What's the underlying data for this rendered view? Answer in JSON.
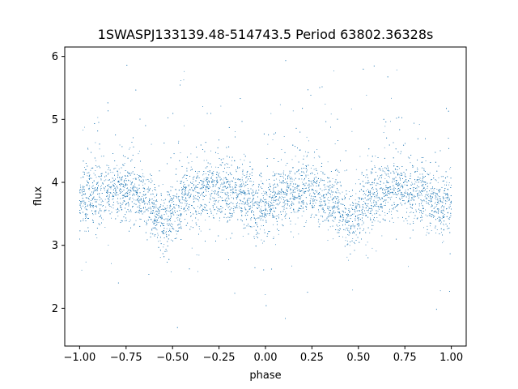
{
  "chart_data": {
    "type": "scatter",
    "title": "1SWASPJ133139.48-514743.5 Period 63802.36328s",
    "xlabel": "phase",
    "ylabel": "flux",
    "xlim": [
      -1.08,
      1.08
    ],
    "ylim": [
      1.4,
      6.15
    ],
    "xticks": [
      -1.0,
      -0.75,
      -0.5,
      -0.25,
      0.0,
      0.25,
      0.5,
      0.75,
      1.0
    ],
    "xtick_labels": [
      "−1.00",
      "−0.75",
      "−0.50",
      "−0.25",
      "0.00",
      "0.25",
      "0.50",
      "0.75",
      "1.00"
    ],
    "yticks": [
      2,
      3,
      4,
      5,
      6
    ],
    "ytick_labels": [
      "2",
      "3",
      "4",
      "5",
      "6"
    ],
    "grid": false,
    "marker_color": "#1f77b4",
    "series": [
      {
        "name": "",
        "x_range": [
          -1.0,
          1.0
        ],
        "mean_profile": [
          {
            "x": -1.0,
            "y": 3.7
          },
          {
            "x": -0.9,
            "y": 3.8
          },
          {
            "x": -0.8,
            "y": 3.88
          },
          {
            "x": -0.7,
            "y": 3.85
          },
          {
            "x": -0.62,
            "y": 3.65
          },
          {
            "x": -0.55,
            "y": 3.32
          },
          {
            "x": -0.48,
            "y": 3.6
          },
          {
            "x": -0.4,
            "y": 3.8
          },
          {
            "x": -0.3,
            "y": 3.88
          },
          {
            "x": -0.2,
            "y": 3.85
          },
          {
            "x": -0.1,
            "y": 3.72
          },
          {
            "x": -0.05,
            "y": 3.55
          },
          {
            "x": 0.0,
            "y": 3.65
          },
          {
            "x": 0.1,
            "y": 3.8
          },
          {
            "x": 0.2,
            "y": 3.88
          },
          {
            "x": 0.3,
            "y": 3.85
          },
          {
            "x": 0.38,
            "y": 3.65
          },
          {
            "x": 0.45,
            "y": 3.32
          },
          {
            "x": 0.52,
            "y": 3.6
          },
          {
            "x": 0.6,
            "y": 3.8
          },
          {
            "x": 0.7,
            "y": 3.88
          },
          {
            "x": 0.8,
            "y": 3.85
          },
          {
            "x": 0.9,
            "y": 3.72
          },
          {
            "x": 0.95,
            "y": 3.58
          },
          {
            "x": 1.0,
            "y": 3.65
          }
        ]
      }
    ]
  }
}
